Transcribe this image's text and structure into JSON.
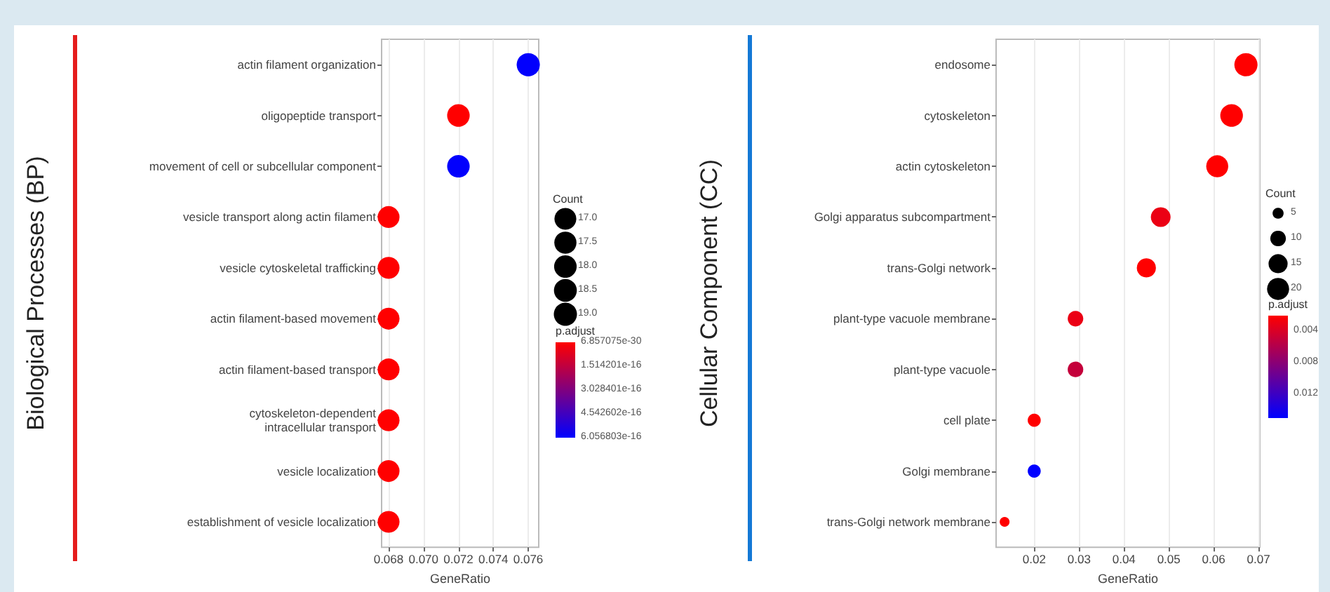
{
  "chart_data": [
    {
      "type": "bubble",
      "orientation": "horizontal",
      "ylabel": "Biological Processes (BP)",
      "xlabel": "GeneRatio",
      "legend_title": "Count",
      "clabel": "p.adjust",
      "grid": "x",
      "marker": "circle",
      "categories": [
        "actin filament organization",
        "oligopeptide transport",
        "movement of cell or subcellular component",
        "vesicle transport along actin filament",
        "vesicle cytoskeletal trafficking",
        "actin filament-based movement",
        "actin filament-based transport",
        "cytoskeleton-dependent\nintracellular transport",
        "vesicle localization",
        "establishment of vesicle localization"
      ],
      "values": [
        0.076,
        0.072,
        0.072,
        0.068,
        0.068,
        0.068,
        0.068,
        0.068,
        0.068,
        0.068
      ],
      "sizes": [
        19,
        18,
        18,
        17,
        17,
        17,
        17,
        17,
        17,
        17
      ],
      "size_legend": [
        {
          "value": 17,
          "label": "17.0"
        },
        {
          "value": 17.5,
          "label": "17.5"
        },
        {
          "value": 18,
          "label": "18.0"
        },
        {
          "value": 18.5,
          "label": "18.5"
        },
        {
          "value": 19,
          "label": "19.0"
        }
      ],
      "cvalues": [
        6e-16,
        1e-20,
        6e-16,
        6.857075e-30,
        6.857075e-30,
        6.857075e-30,
        6.857075e-30,
        6.857075e-30,
        6.857075e-30,
        6.857075e-30
      ],
      "clim": [
        6.857075e-30,
        6.056803e-16
      ],
      "cticks": [
        {
          "value": 6.857075e-30,
          "label": "6.857075e-30"
        },
        {
          "value": 1.514201e-16,
          "label": "1.514201e-16"
        },
        {
          "value": 3.028401e-16,
          "label": "3.028401e-16"
        },
        {
          "value": 4.542602e-16,
          "label": "4.542602e-16"
        },
        {
          "value": 6.056803e-16,
          "label": "6.056803e-16"
        }
      ],
      "xlim": [
        0.0676,
        0.0766
      ],
      "xticks": [
        {
          "value": 0.068,
          "label": "0.068"
        },
        {
          "value": 0.07,
          "label": "0.070"
        },
        {
          "value": 0.072,
          "label": "0.072"
        },
        {
          "value": 0.074,
          "label": "0.074"
        },
        {
          "value": 0.076,
          "label": "0.076"
        }
      ]
    },
    {
      "type": "bubble",
      "orientation": "horizontal",
      "ylabel": "Cellular Component (CC)",
      "xlabel": "GeneRatio",
      "legend_title": "Count",
      "clabel": "p.adjust",
      "grid": "x",
      "marker": "circle",
      "categories": [
        "endosome",
        "cytoskeleton",
        "actin cytoskeleton",
        "Golgi apparatus subcompartment",
        "trans-Golgi network",
        "plant-type vacuole membrane",
        "plant-type vacuole",
        "cell plate",
        "Golgi membrane",
        "trans-Golgi network membrane"
      ],
      "values": [
        0.0672,
        0.064,
        0.0608,
        0.0482,
        0.045,
        0.0292,
        0.0292,
        0.02,
        0.02,
        0.0134
      ],
      "sizes": [
        22,
        21,
        20,
        16,
        15,
        10,
        10,
        7,
        7,
        4
      ],
      "size_legend": [
        5,
        10,
        15,
        20
      ],
      "cvalues": [
        0.002,
        0.002,
        0.002,
        0.003,
        0.002,
        0.003,
        0.005,
        0.002,
        0.015,
        0.002
      ],
      "clim": [
        0.002,
        0.015
      ],
      "cticks": [
        0.004,
        0.008,
        0.012
      ],
      "xlim": [
        0.0115,
        0.0703
      ],
      "xticks": [
        0.02,
        0.03,
        0.04,
        0.05,
        0.06,
        0.07
      ]
    }
  ]
}
